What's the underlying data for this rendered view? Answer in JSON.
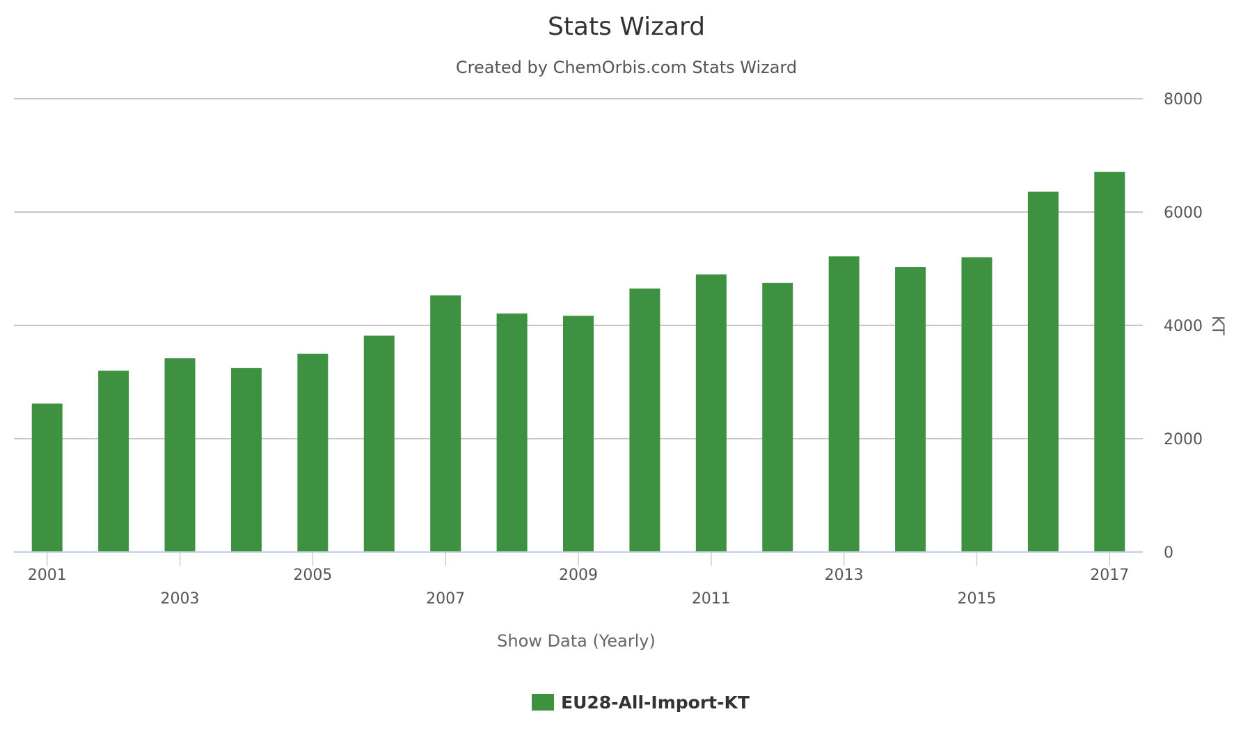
{
  "chart_data": {
    "type": "bar",
    "title": "Stats Wizard",
    "subtitle": "Created by ChemOrbis.com Stats Wizard",
    "xlabel": "Show Data (Yearly)",
    "ylabel": "KT",
    "categories": [
      "2001",
      "2002",
      "2003",
      "2004",
      "2005",
      "2006",
      "2007",
      "2008",
      "2009",
      "2010",
      "2011",
      "2012",
      "2013",
      "2014",
      "2015",
      "2016",
      "2017"
    ],
    "x_tick_labels": [
      "2001",
      "2003",
      "2005",
      "2007",
      "2009",
      "2011",
      "2013",
      "2015",
      "2017"
    ],
    "series": [
      {
        "name": "EU28-All-Import-KT",
        "color": "#3e9140",
        "values": [
          2620,
          3200,
          3420,
          3250,
          3500,
          3820,
          4530,
          4210,
          4170,
          4650,
          4900,
          4750,
          5220,
          5030,
          5200,
          6360,
          6710
        ]
      }
    ],
    "ylim": [
      0,
      8000
    ],
    "y_ticks": [
      0,
      2000,
      4000,
      6000,
      8000
    ],
    "y_axis_side": "right",
    "grid": true,
    "legend_position": "bottom-center"
  }
}
